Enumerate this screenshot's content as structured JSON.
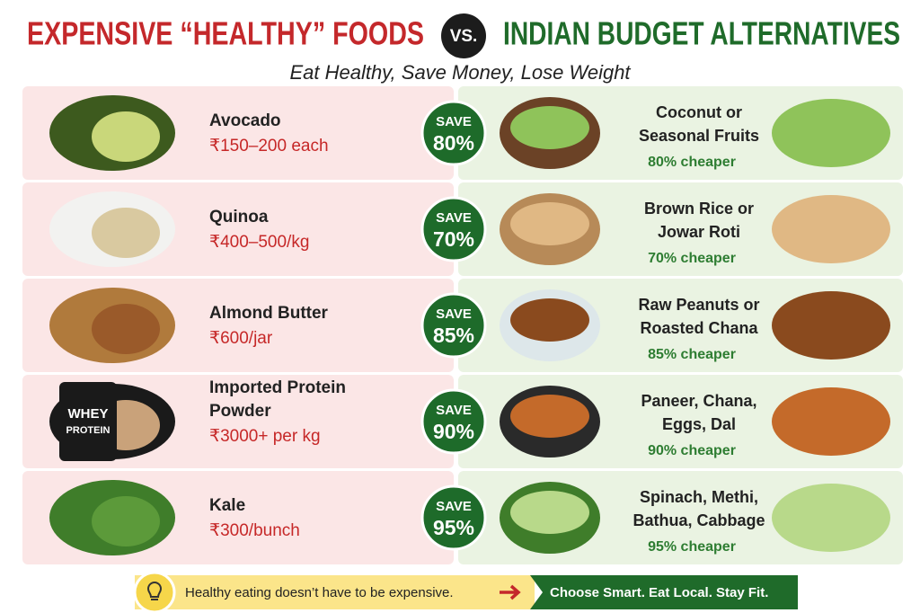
{
  "header": {
    "left_title": "EXPENSIVE “HEALTHY” FOODS",
    "versus": "VS.",
    "right_title": "INDIAN BUDGET ALTERNATIVES",
    "subtitle": "Eat Healthy, Save Money, Lose Weight"
  },
  "rows": [
    {
      "expensive": [
        "Avocado"
      ],
      "price": "₹150–200 each",
      "save": "SAVE",
      "percent": "80%",
      "alternative": [
        "Coconut or",
        "Seasonal Fruits"
      ],
      "cheaper": "80% cheaper"
    },
    {
      "expensive": [
        "Quinoa"
      ],
      "price": "₹400–500/kg",
      "save": "SAVE",
      "percent": "70%",
      "alternative": [
        "Brown Rice or",
        "Jowar Roti"
      ],
      "cheaper": "70% cheaper"
    },
    {
      "expensive": [
        "Almond Butter"
      ],
      "price": "₹600/jar",
      "save": "SAVE",
      "percent": "85%",
      "alternative": [
        "Raw Peanuts or",
        "Roasted Chana"
      ],
      "cheaper": "85% cheaper"
    },
    {
      "expensive": [
        "Imported Protein",
        "Powder"
      ],
      "price": "₹3000+ per kg",
      "save": "SAVE",
      "percent": "90%",
      "alternative": [
        "Paneer, Chana,",
        "Eggs, Dal"
      ],
      "cheaper": "90% cheaper",
      "jar_label": [
        "WHEY",
        "PROTEIN"
      ]
    },
    {
      "expensive": [
        "Kale"
      ],
      "price": "₹300/bunch",
      "save": "SAVE",
      "percent": "95%",
      "alternative": [
        "Spinach, Methi,",
        "Bathua, Cabbage"
      ],
      "cheaper": "95% cheaper"
    }
  ],
  "footer": {
    "left": "Healthy eating doesn’t have to be expensive.",
    "right": "Choose Smart. Eat Local. Stay Fit."
  }
}
